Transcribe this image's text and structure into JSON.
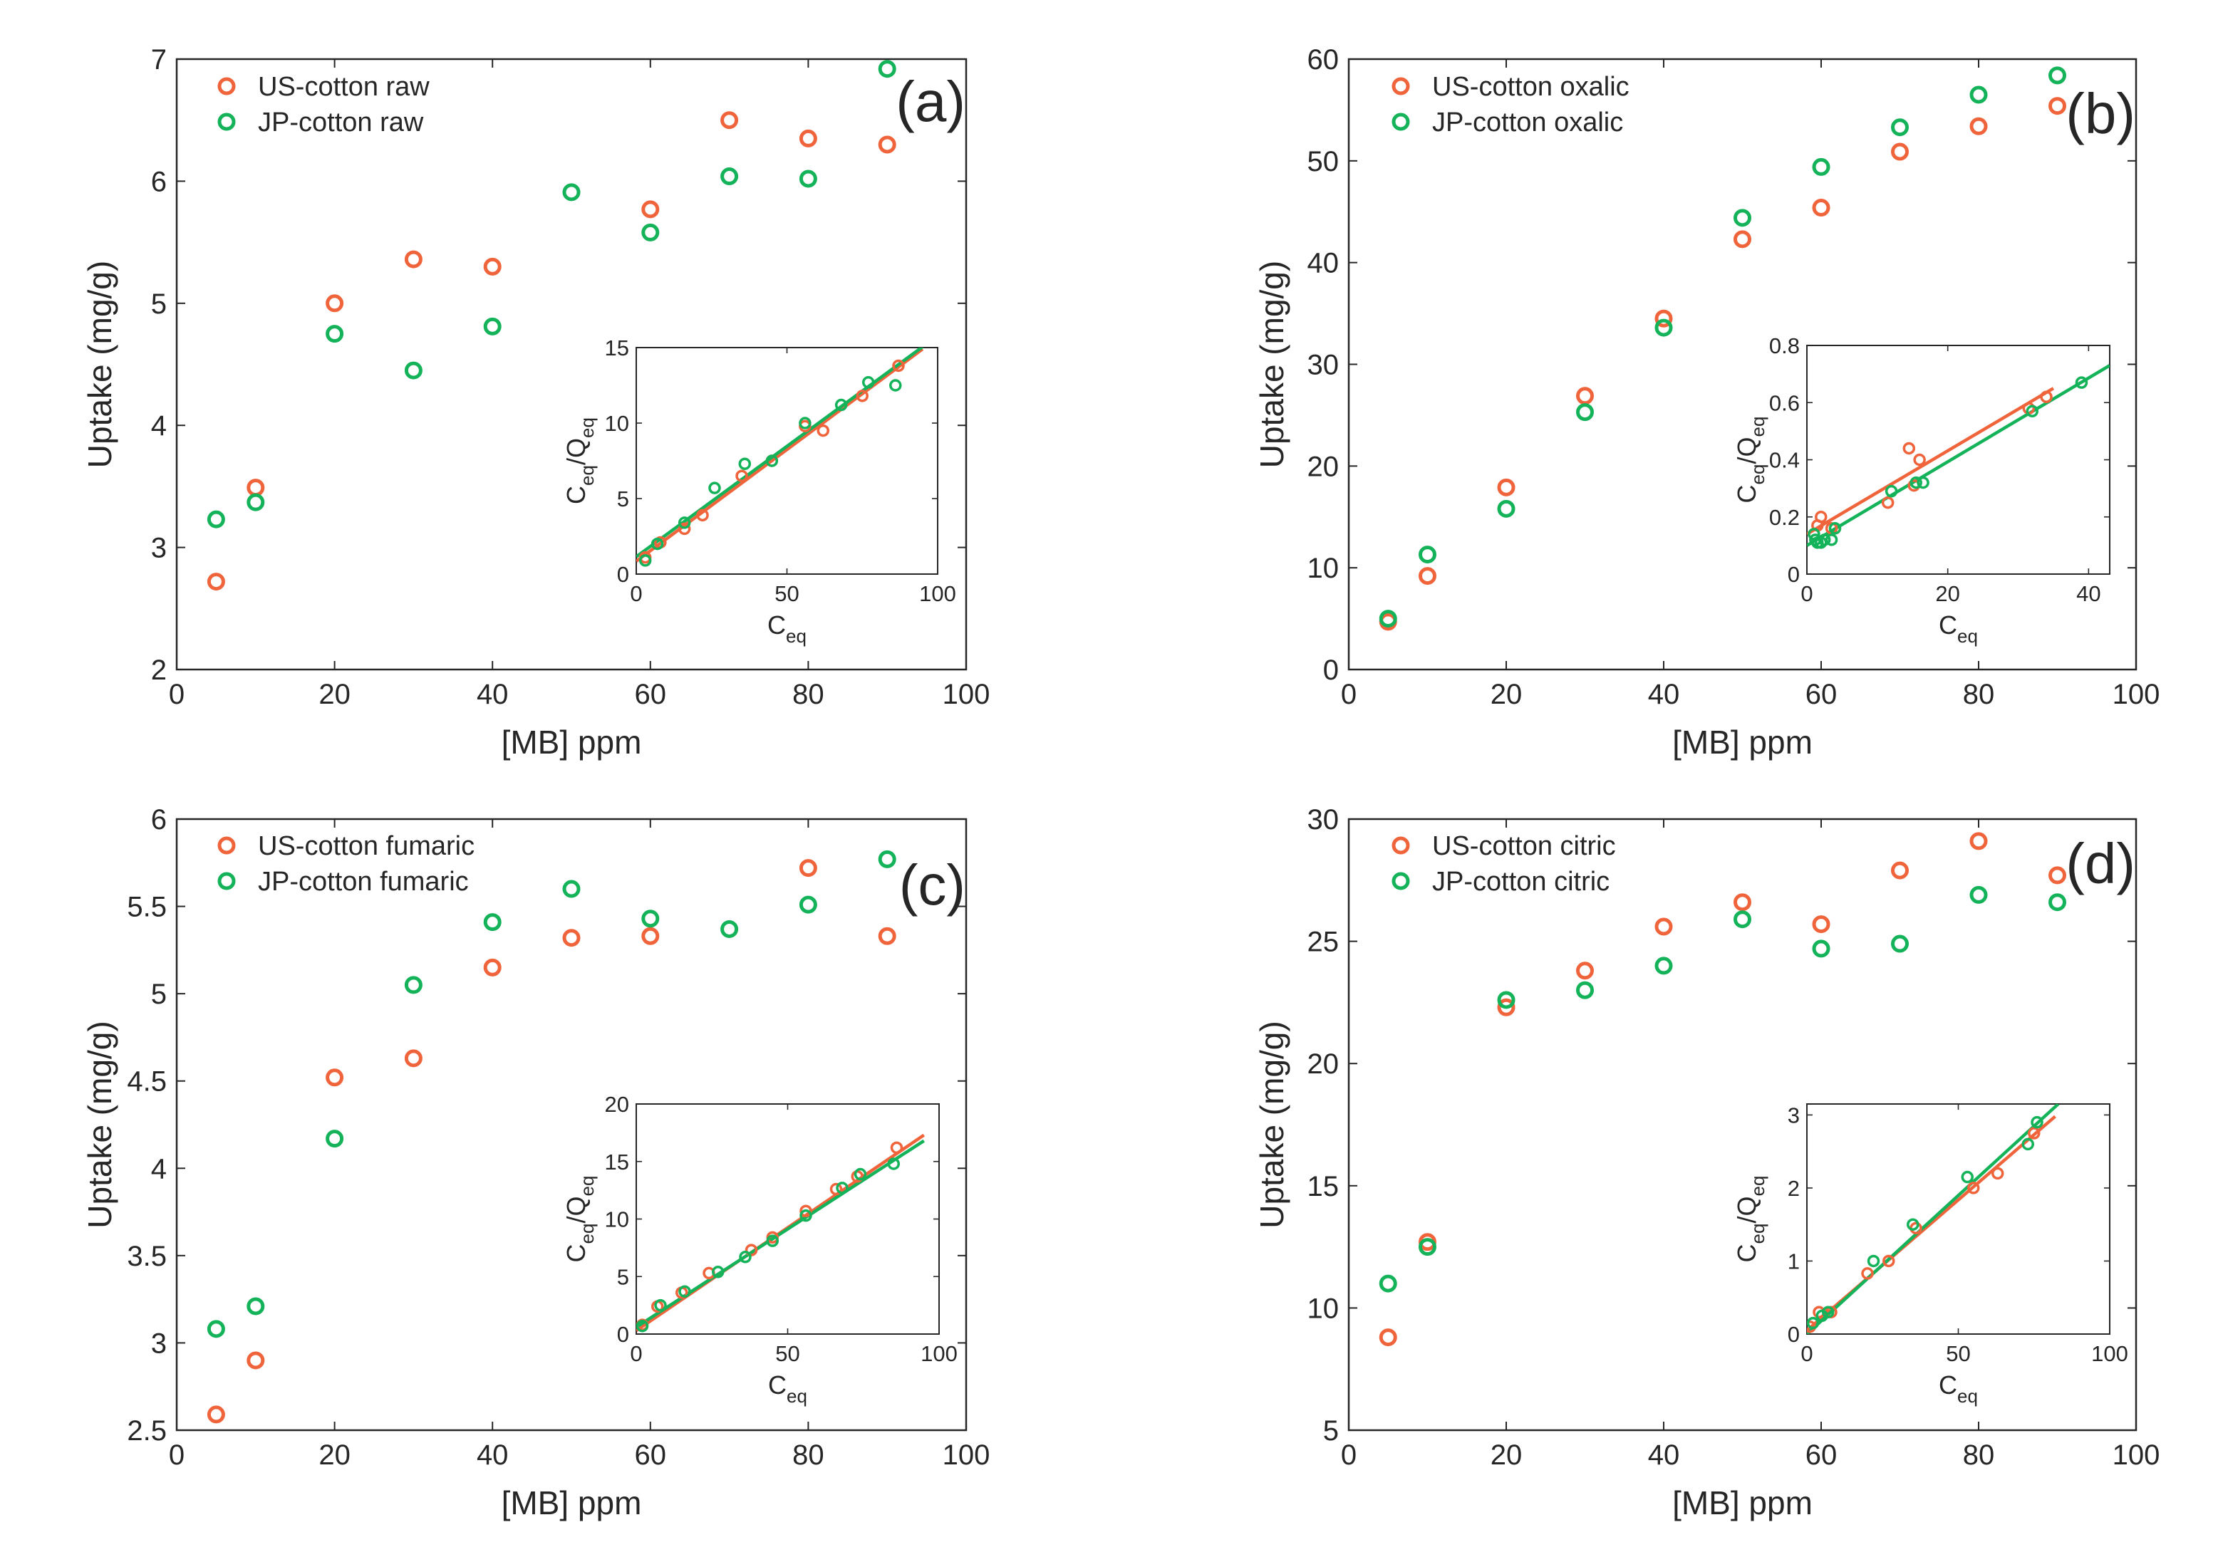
{
  "colors": {
    "us": "#f0643c",
    "jp": "#14b35a",
    "axis": "#262626"
  },
  "chart_data": [
    {
      "type": "scatter",
      "panel_label": "(a)",
      "xlabel": "[MB] ppm",
      "ylabel": "Uptake (mg/g)",
      "xlim": [
        0,
        100
      ],
      "ylim": [
        2,
        7
      ],
      "xticks": [
        0,
        20,
        40,
        60,
        80,
        100
      ],
      "yticks": [
        2,
        3,
        4,
        5,
        6,
        7
      ],
      "ytick_labels": [
        "2",
        "3",
        "4",
        "5",
        "6",
        "7"
      ],
      "legend_position": "top-left",
      "series": [
        {
          "name": "US-cotton raw",
          "color_key": "us",
          "x": [
            5,
            10,
            20,
            30,
            40,
            60,
            70,
            80,
            90
          ],
          "y": [
            2.72,
            3.49,
            5.0,
            5.36,
            5.3,
            5.77,
            6.5,
            6.35,
            6.3
          ]
        },
        {
          "name": "JP-cotton raw",
          "color_key": "jp",
          "x": [
            5,
            10,
            20,
            30,
            40,
            50,
            60,
            70,
            80,
            90
          ],
          "y": [
            3.23,
            3.37,
            4.75,
            4.45,
            4.81,
            5.91,
            5.58,
            6.04,
            6.02,
            6.92
          ]
        }
      ],
      "inset": {
        "xlabel": "C",
        "xlabel_sub": "eq",
        "ylabel": [
          "C",
          "eq",
          "/Q",
          "eq"
        ],
        "xlim": [
          0,
          100
        ],
        "ylim": [
          0,
          15
        ],
        "xticks": [
          0,
          50,
          100
        ],
        "yticks": [
          0,
          5,
          10,
          15
        ],
        "ytick_labels": [
          "0",
          "5",
          "10",
          "15"
        ],
        "series": [
          {
            "color_key": "us",
            "x": [
              3,
              8,
              16,
              22,
              35,
              45,
              56,
              62,
              75,
              87
            ],
            "y": [
              1.1,
              2.1,
              3.0,
              3.9,
              6.5,
              7.5,
              9.8,
              9.5,
              11.8,
              13.8
            ],
            "fit": [
              [
                0,
                0.85
              ],
              [
                95,
                14.9
              ]
            ]
          },
          {
            "color_key": "jp",
            "x": [
              3,
              7,
              16,
              26,
              36,
              45,
              56,
              68,
              77,
              86
            ],
            "y": [
              0.9,
              2.0,
              3.4,
              5.7,
              7.3,
              7.5,
              10.0,
              11.2,
              12.7,
              12.5
            ],
            "fit": [
              [
                0,
                1.15
              ],
              [
                95,
                15.05
              ]
            ]
          }
        ]
      }
    },
    {
      "type": "scatter",
      "panel_label": "(b)",
      "xlabel": "[MB] ppm",
      "ylabel": "Uptake (mg/g)",
      "xlim": [
        0,
        100
      ],
      "ylim": [
        0,
        60
      ],
      "xticks": [
        0,
        20,
        40,
        60,
        80,
        100
      ],
      "yticks": [
        0,
        10,
        20,
        30,
        40,
        50,
        60
      ],
      "ytick_labels": [
        "0",
        "10",
        "20",
        "30",
        "40",
        "50",
        "60"
      ],
      "legend_position": "top-left",
      "series": [
        {
          "name": "US-cotton oxalic",
          "color_key": "us",
          "x": [
            5,
            10,
            20,
            30,
            40,
            50,
            60,
            70,
            80,
            90
          ],
          "y": [
            4.7,
            9.2,
            17.9,
            26.9,
            34.5,
            42.3,
            45.4,
            50.9,
            53.4,
            55.4
          ]
        },
        {
          "name": "JP-cotton oxalic",
          "color_key": "jp",
          "x": [
            5,
            10,
            20,
            30,
            40,
            50,
            60,
            70,
            80,
            90
          ],
          "y": [
            5.0,
            11.3,
            15.8,
            25.3,
            33.6,
            44.4,
            49.4,
            53.3,
            56.5,
            58.4
          ]
        }
      ],
      "inset": {
        "xlabel": "C",
        "xlabel_sub": "eq",
        "ylabel": [
          "C",
          "eq",
          "/Q",
          "eq"
        ],
        "xlim": [
          0,
          43
        ],
        "ylim": [
          0,
          0.8
        ],
        "xticks": [
          0,
          20,
          40
        ],
        "yticks": [
          0,
          0.2,
          0.4,
          0.6,
          0.8
        ],
        "ytick_labels": [
          "0",
          "0.2",
          "0.4",
          "0.6",
          "0.8"
        ],
        "series": [
          {
            "color_key": "us",
            "x": [
              1.5,
              2.0,
              3.5,
              11.5,
              14.5,
              15.2,
              16.0,
              31.5,
              34.0
            ],
            "y": [
              0.17,
              0.2,
              0.16,
              0.25,
              0.44,
              0.31,
              0.4,
              0.58,
              0.62
            ],
            "fit": [
              [
                0,
                0.14
              ],
              [
                35,
                0.65
              ]
            ]
          },
          {
            "color_key": "jp",
            "x": [
              1.0,
              1.2,
              1.5,
              2.0,
              2.5,
              3.5,
              4.0,
              12.0,
              15.5,
              16.5,
              32.0,
              39.0
            ],
            "y": [
              0.14,
              0.12,
              0.11,
              0.11,
              0.12,
              0.12,
              0.16,
              0.29,
              0.32,
              0.32,
              0.57,
              0.67
            ],
            "fit": [
              [
                0,
                0.1
              ],
              [
                43,
                0.73
              ]
            ]
          }
        ]
      }
    },
    {
      "type": "scatter",
      "panel_label": "(c)",
      "xlabel": "[MB] ppm",
      "ylabel": "Uptake (mg/g)",
      "xlim": [
        0,
        100
      ],
      "ylim": [
        2.5,
        6
      ],
      "xticks": [
        0,
        20,
        40,
        60,
        80,
        100
      ],
      "yticks": [
        2.5,
        3,
        3.5,
        4,
        4.5,
        5,
        5.5,
        6
      ],
      "ytick_labels": [
        "2.5",
        "3",
        "3.5",
        "4",
        "4.5",
        "5",
        "5.5",
        "6"
      ],
      "legend_position": "top-left",
      "series": [
        {
          "name": "US-cotton fumaric",
          "color_key": "us",
          "x": [
            5,
            10,
            20,
            30,
            40,
            50,
            60,
            80,
            90
          ],
          "y": [
            2.59,
            2.9,
            4.52,
            4.63,
            5.15,
            5.32,
            5.33,
            5.72,
            5.33
          ]
        },
        {
          "name": "JP-cotton fumaric",
          "color_key": "jp",
          "x": [
            5,
            10,
            20,
            30,
            40,
            50,
            60,
            70,
            80,
            90
          ],
          "y": [
            3.08,
            3.21,
            4.17,
            5.05,
            5.41,
            5.6,
            5.43,
            5.37,
            5.51,
            5.77
          ]
        }
      ],
      "inset": {
        "xlabel": "C",
        "xlabel_sub": "eq",
        "ylabel": [
          "C",
          "eq",
          "/Q",
          "eq"
        ],
        "xlim": [
          0,
          100
        ],
        "ylim": [
          0,
          20
        ],
        "xticks": [
          0,
          50,
          100
        ],
        "yticks": [
          0,
          5,
          10,
          15,
          20
        ],
        "ytick_labels": [
          "0",
          "5",
          "10",
          "15",
          "20"
        ],
        "series": [
          {
            "color_key": "us",
            "x": [
              2,
              7,
              15,
              24,
              38,
              45,
              56,
              66,
              73,
              86
            ],
            "y": [
              0.8,
              2.4,
              3.6,
              5.3,
              7.3,
              8.4,
              10.7,
              12.6,
              13.7,
              16.2
            ]
          },
          {
            "color_key": "jp",
            "x": [
              2,
              8,
              16,
              27,
              36,
              45,
              56,
              68,
              74,
              85
            ],
            "y": [
              0.7,
              2.5,
              3.7,
              5.4,
              6.7,
              8.1,
              10.3,
              12.7,
              13.9,
              14.8
            ]
          }
        ],
        "fits": [
          {
            "color_key": "us",
            "points": [
              [
                0,
                0.3
              ],
              [
                95,
                17.3
              ]
            ]
          },
          {
            "color_key": "jp",
            "points": [
              [
                0,
                0.6
              ],
              [
                95,
                16.8
              ]
            ]
          }
        ]
      }
    },
    {
      "type": "scatter",
      "panel_label": "(d)",
      "xlabel": "[MB] ppm",
      "ylabel": "Uptake (mg/g)",
      "xlim": [
        0,
        100
      ],
      "ylim": [
        5,
        30
      ],
      "xticks": [
        0,
        20,
        40,
        60,
        80,
        100
      ],
      "yticks": [
        5,
        10,
        15,
        20,
        25,
        30
      ],
      "ytick_labels": [
        "5",
        "10",
        "15",
        "20",
        "25",
        "30"
      ],
      "legend_position": "top-left",
      "series": [
        {
          "name": "US-cotton citric",
          "color_key": "us",
          "x": [
            5,
            10,
            20,
            30,
            40,
            50,
            60,
            70,
            80,
            90
          ],
          "y": [
            8.8,
            12.7,
            22.3,
            23.8,
            25.6,
            26.6,
            25.7,
            27.9,
            29.1,
            27.7
          ]
        },
        {
          "name": "JP-cotton citric",
          "color_key": "jp",
          "x": [
            5,
            10,
            20,
            30,
            40,
            50,
            60,
            70,
            80,
            90
          ],
          "y": [
            11.0,
            12.5,
            22.6,
            23.0,
            24.0,
            25.9,
            24.7,
            24.9,
            26.9,
            26.6
          ]
        }
      ],
      "inset": {
        "xlabel": "C",
        "xlabel_sub": "eq",
        "ylabel": [
          "C",
          "eq",
          "/Q",
          "eq"
        ],
        "xlim": [
          0,
          100
        ],
        "ylim": [
          0,
          3.15
        ],
        "xticks": [
          0,
          50,
          100
        ],
        "yticks": [
          0,
          1,
          2,
          3
        ],
        "ytick_labels": [
          "0",
          "1",
          "2",
          "3"
        ],
        "series": [
          {
            "color_key": "us",
            "x": [
              1,
              4,
              8,
              20,
              27,
              36,
              55,
              63,
              75
            ],
            "y": [
              0.1,
              0.3,
              0.3,
              0.83,
              1.0,
              1.45,
              2.0,
              2.2,
              2.75
            ]
          },
          {
            "color_key": "jp",
            "x": [
              2,
              5,
              7,
              22,
              35,
              53,
              73,
              76
            ],
            "y": [
              0.15,
              0.25,
              0.3,
              1.0,
              1.5,
              2.15,
              2.6,
              2.9
            ]
          }
        ],
        "fits": [
          {
            "color_key": "us",
            "points": [
              [
                0,
                0.05
              ],
              [
                82,
                2.98
              ]
            ]
          },
          {
            "color_key": "jp",
            "points": [
              [
                0,
                0.0
              ],
              [
                83,
                3.15
              ]
            ]
          }
        ]
      }
    }
  ]
}
